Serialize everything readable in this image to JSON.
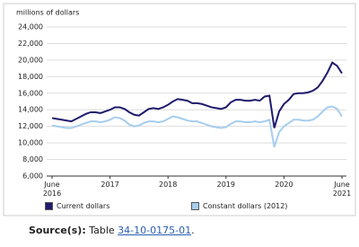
{
  "chart_data": {
    "type": "line",
    "y_axis_label": "millions of dollars",
    "categories": [
      "June 2016",
      null,
      null,
      null,
      null,
      null,
      null,
      null,
      null,
      null,
      null,
      null,
      "2017",
      null,
      null,
      null,
      null,
      null,
      null,
      null,
      null,
      null,
      null,
      null,
      "2018",
      null,
      null,
      null,
      null,
      null,
      null,
      null,
      null,
      null,
      null,
      null,
      "2019",
      null,
      null,
      null,
      null,
      null,
      null,
      null,
      null,
      null,
      null,
      null,
      "2020",
      null,
      null,
      null,
      null,
      null,
      null,
      null,
      null,
      null,
      null,
      null,
      "June 2021"
    ],
    "series": [
      {
        "name": "Current dollars",
        "color": "#1f1a6b",
        "values": [
          13000,
          12900,
          12800,
          12700,
          12600,
          12900,
          13200,
          13500,
          13700,
          13700,
          13600,
          13800,
          14000,
          14300,
          14300,
          14100,
          13700,
          13400,
          13300,
          13700,
          14100,
          14200,
          14100,
          14300,
          14600,
          15000,
          15300,
          15200,
          15100,
          14800,
          14800,
          14700,
          14500,
          14300,
          14200,
          14100,
          14300,
          14900,
          15200,
          15200,
          15100,
          15100,
          15200,
          15100,
          15600,
          15700,
          11800,
          13800,
          14700,
          15200,
          15900,
          16000,
          16000,
          16100,
          16300,
          16700,
          17500,
          18500,
          19700,
          19300,
          18400
        ]
      },
      {
        "name": "Constant dollars (2012)",
        "color": "#a6cdee",
        "values": [
          12100,
          12000,
          11900,
          11800,
          11800,
          12000,
          12200,
          12400,
          12600,
          12600,
          12500,
          12600,
          12800,
          13100,
          13000,
          12700,
          12200,
          12000,
          12100,
          12400,
          12600,
          12600,
          12500,
          12600,
          12900,
          13200,
          13100,
          12900,
          12700,
          12600,
          12600,
          12400,
          12200,
          12000,
          11900,
          11800,
          11900,
          12300,
          12600,
          12600,
          12500,
          12500,
          12600,
          12500,
          12600,
          12800,
          9500,
          11300,
          12000,
          12400,
          12800,
          12800,
          12700,
          12700,
          12800,
          13200,
          13800,
          14300,
          14400,
          14100,
          13200
        ]
      }
    ],
    "ylim": [
      6000,
      24000
    ],
    "yticks": [
      {
        "value": 6000,
        "label": "6,000"
      },
      {
        "value": 8000,
        "label": "8,000"
      },
      {
        "value": 10000,
        "label": "10,000"
      },
      {
        "value": 12000,
        "label": "12,000"
      },
      {
        "value": 14000,
        "label": "14,000"
      },
      {
        "value": 16000,
        "label": "16,000"
      },
      {
        "value": 18000,
        "label": "18,000"
      },
      {
        "value": 20000,
        "label": "20,000"
      },
      {
        "value": 22000,
        "label": "22,000"
      },
      {
        "value": 24000,
        "label": "24,000"
      }
    ],
    "grid": true
  },
  "source": {
    "label": "Source(s):",
    "text": "Table",
    "link": "34-10-0175-01",
    "end": "."
  }
}
